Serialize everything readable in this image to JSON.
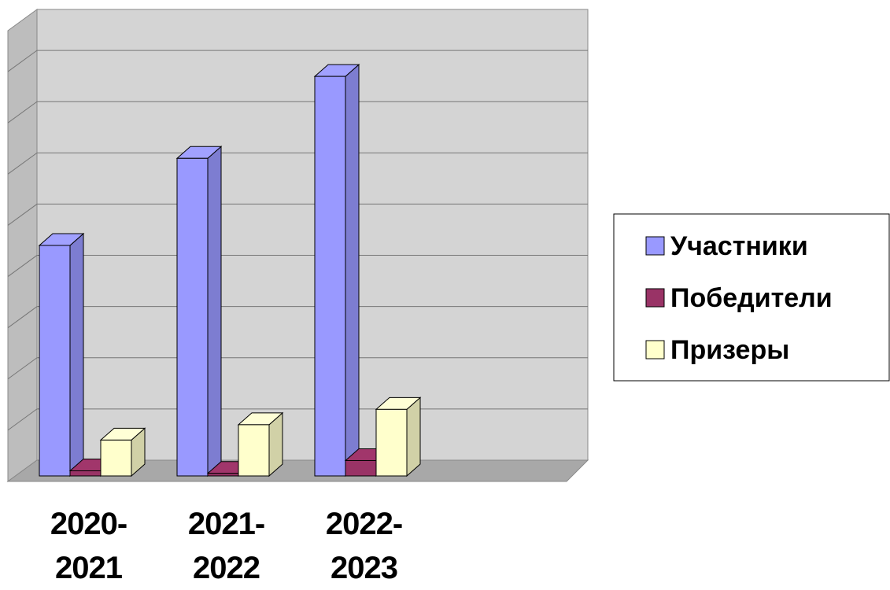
{
  "chart_data": {
    "type": "bar3d",
    "categories": [
      "2020-2021",
      "2021-2022",
      "2022-2023"
    ],
    "series": [
      {
        "name": "Участники",
        "color": "#9999ff",
        "values": [
          45,
          62,
          78
        ]
      },
      {
        "name": "Победители",
        "color": "#993366",
        "values": [
          1,
          0.5,
          3
        ]
      },
      {
        "name": "Призеры",
        "color": "#ffffcc",
        "values": [
          7,
          10,
          13
        ]
      }
    ],
    "ylim": [
      0,
      88
    ],
    "yticks": [
      0,
      10,
      20,
      30,
      40,
      50,
      60,
      70,
      80
    ],
    "grid": true,
    "legend": "right"
  }
}
